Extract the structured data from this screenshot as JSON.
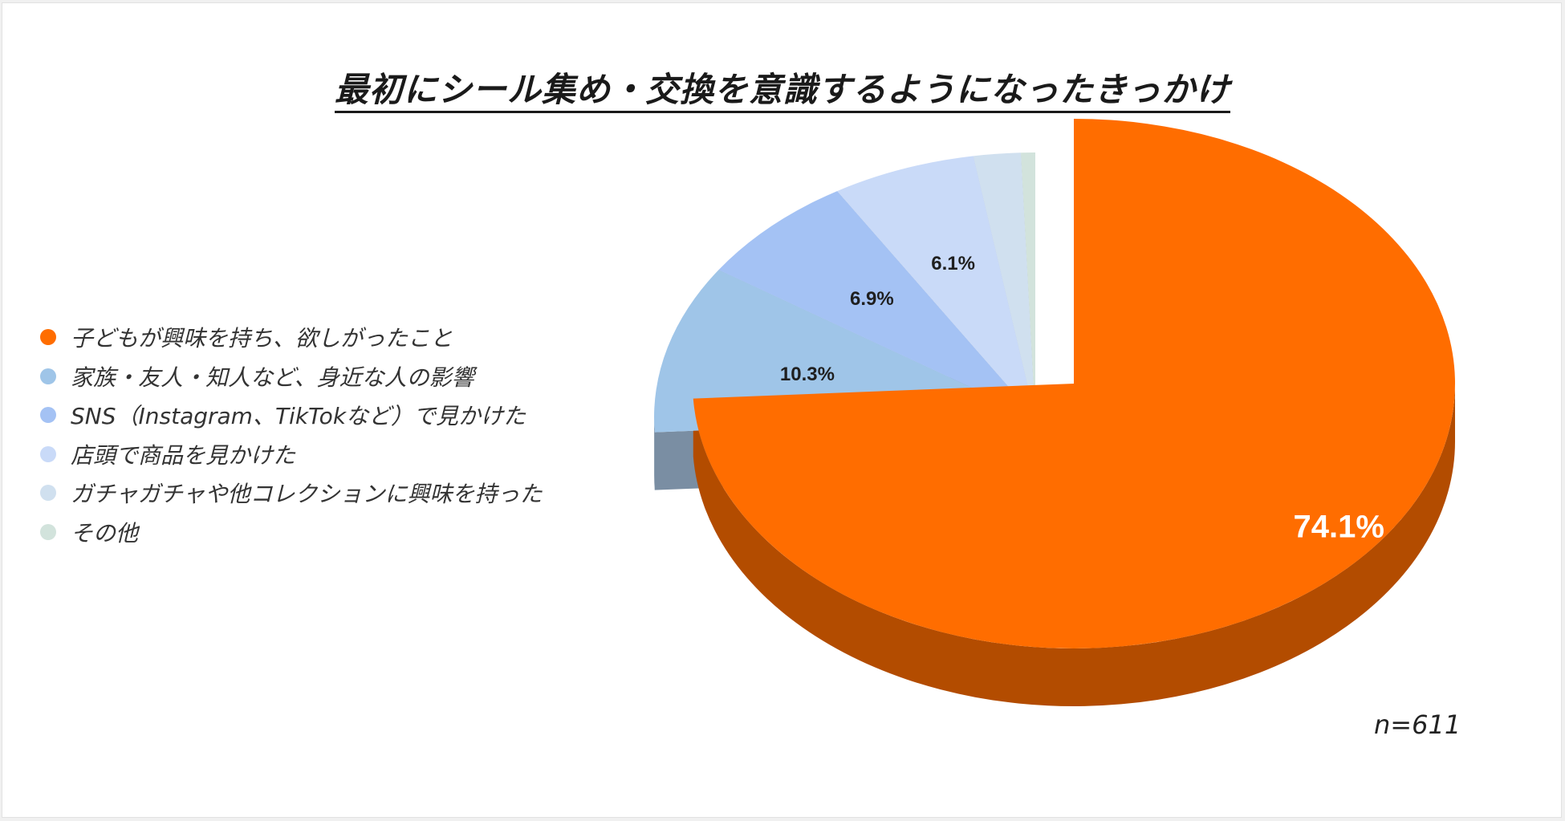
{
  "title": "最初にシール集め・交換を意識するようになったきっかけ",
  "sample_size": "n=611",
  "chart_data": {
    "type": "pie",
    "three_d": true,
    "exploded_slice": "子どもが興味を持ち、欲しがったこと",
    "legend_position": "left",
    "labels": [
      "子どもが興味を持ち、欲しがったこと",
      "家族・友人・知人など、身近な人の影響",
      "SNS（Instagram、TikTokなど）で見かけた",
      "店頭で商品を見かけた",
      "ガチャガチャや他コレクションに興味を持った",
      "その他"
    ],
    "values": [
      74.1,
      10.3,
      6.9,
      6.1,
      2.0,
      0.6
    ],
    "data_labels": [
      "74.1%",
      "10.3%",
      "6.9%",
      "6.1%",
      "",
      ""
    ],
    "colors": [
      "#ff6d00",
      "#9fc5e8",
      "#a4c2f4",
      "#c9daf8",
      "#d0e0ef",
      "#d2e3dc"
    ],
    "side_colors": [
      "#b34c00",
      "#7a8ea3",
      "#7a8fb0",
      "#8c99ad",
      "#96a4b0",
      "#98a59e"
    ]
  }
}
